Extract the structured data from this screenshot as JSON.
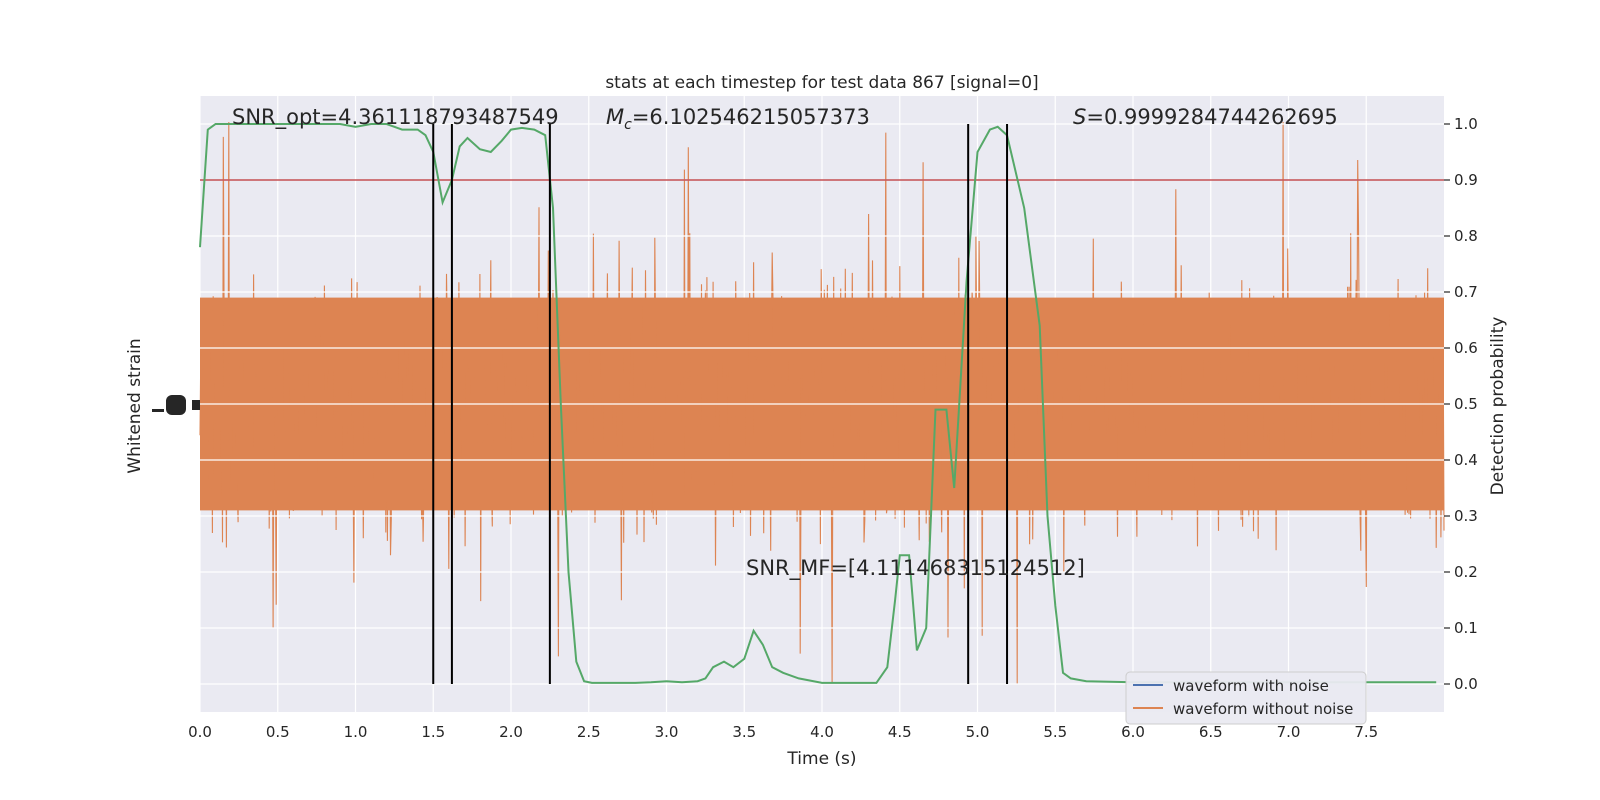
{
  "chart_data": {
    "type": "line",
    "title": "stats at each timestep for test data 867 [signal=0]",
    "xlabel": "Time (s)",
    "ylabel_left": "Whitened strain",
    "ylabel_right": "Detection probability",
    "xlim": [
      0,
      8.0
    ],
    "ylim_right": [
      -0.05,
      1.05
    ],
    "x_ticks": [
      "0.0",
      "0.5",
      "1.0",
      "1.5",
      "2.0",
      "2.5",
      "3.0",
      "3.5",
      "4.0",
      "4.5",
      "5.0",
      "5.5",
      "6.0",
      "6.5",
      "7.0",
      "7.5"
    ],
    "y_ticks_right": [
      "0.0",
      "0.1",
      "0.2",
      "0.3",
      "0.4",
      "0.5",
      "0.6",
      "0.7",
      "0.8",
      "0.9",
      "1.0"
    ],
    "annotations": {
      "snr_opt": "SNR_opt=4.361118793487549",
      "mc": "=6.102546215057373",
      "mc_symbol": "M",
      "mc_sub": "c",
      "s": "=0.9999284744262695",
      "s_symbol": "S",
      "snr_mf": "SNR_MF=[4.111468315124512]"
    },
    "threshold": 0.9,
    "vertical_lines": [
      1.5,
      1.62,
      2.25,
      4.94,
      5.19
    ],
    "legend": {
      "position": "lower-right",
      "entries": [
        {
          "label": "waveform with noise",
          "color": "#4c72b0"
        },
        {
          "label": "waveform without noise",
          "color": "#dd8452"
        }
      ]
    },
    "series": [
      {
        "name": "detection probability",
        "color": "#55a868",
        "x": [
          0.0,
          0.05,
          0.1,
          0.2,
          0.3,
          0.4,
          0.5,
          0.6,
          0.7,
          0.8,
          0.9,
          1.0,
          1.1,
          1.2,
          1.3,
          1.4,
          1.45,
          1.5,
          1.56,
          1.62,
          1.67,
          1.72,
          1.8,
          1.87,
          1.94,
          2.0,
          2.07,
          2.15,
          2.22,
          2.27,
          2.32,
          2.37,
          2.42,
          2.47,
          2.52,
          2.6,
          2.7,
          2.8,
          2.9,
          3.0,
          3.1,
          3.2,
          3.25,
          3.3,
          3.37,
          3.43,
          3.5,
          3.56,
          3.62,
          3.68,
          3.75,
          3.85,
          4.0,
          4.2,
          4.35,
          4.42,
          4.47,
          4.5,
          4.56,
          4.61,
          4.67,
          4.73,
          4.8,
          4.85,
          4.93,
          5.0,
          5.08,
          5.13,
          5.19,
          5.3,
          5.4,
          5.45,
          5.5,
          5.55,
          5.6,
          5.7,
          6.0,
          6.5,
          7.0,
          7.5,
          7.95
        ],
        "y": [
          0.78,
          0.99,
          1.0,
          1.0,
          1.0,
          1.0,
          1.0,
          1.0,
          1.0,
          1.0,
          1.0,
          0.995,
          1.0,
          1.0,
          0.99,
          0.99,
          0.98,
          0.95,
          0.86,
          0.9,
          0.96,
          0.975,
          0.955,
          0.95,
          0.97,
          0.99,
          0.993,
          0.99,
          0.98,
          0.85,
          0.5,
          0.2,
          0.04,
          0.005,
          0.002,
          0.002,
          0.002,
          0.002,
          0.003,
          0.005,
          0.003,
          0.005,
          0.01,
          0.03,
          0.04,
          0.03,
          0.045,
          0.095,
          0.07,
          0.03,
          0.02,
          0.01,
          0.002,
          0.002,
          0.002,
          0.03,
          0.15,
          0.23,
          0.23,
          0.06,
          0.1,
          0.49,
          0.49,
          0.35,
          0.72,
          0.95,
          0.99,
          0.995,
          0.98,
          0.85,
          0.64,
          0.3,
          0.14,
          0.02,
          0.01,
          0.005,
          0.003,
          0.003,
          0.003,
          0.003,
          0.003
        ]
      },
      {
        "name": "waveform without noise",
        "color": "#dd8452",
        "note": "dense noise-like strain trace, drawn procedurally"
      }
    ]
  }
}
